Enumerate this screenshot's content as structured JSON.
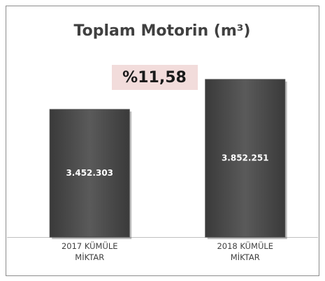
{
  "chart_data": {
    "type": "bar",
    "title": "Toplam Motorin (m³)",
    "annotation": "%11,58",
    "categories": [
      "2017 KÜMÜLE MİKTAR",
      "2018 KÜMÜLE MİKTAR"
    ],
    "values": [
      3452303,
      3852251
    ],
    "value_labels": [
      "3.452.303",
      "3.852.251"
    ],
    "color": "#4d4d4d",
    "ylim": [
      1750000,
      4000000
    ]
  }
}
